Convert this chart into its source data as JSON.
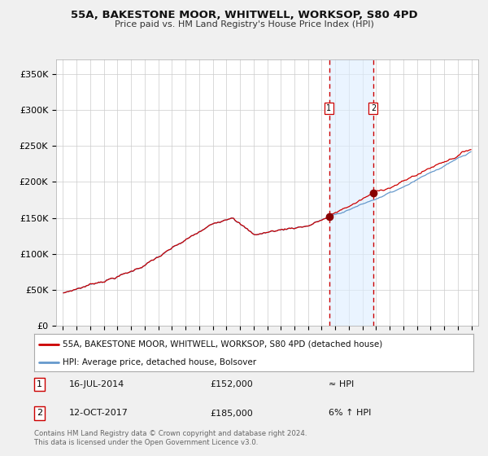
{
  "title": "55A, BAKESTONE MOOR, WHITWELL, WORKSOP, S80 4PD",
  "subtitle": "Price paid vs. HM Land Registry's House Price Index (HPI)",
  "legend_line1": "55A, BAKESTONE MOOR, WHITWELL, WORKSOP, S80 4PD (detached house)",
  "legend_line2": "HPI: Average price, detached house, Bolsover",
  "annotation1_date": "16-JUL-2014",
  "annotation1_price": "£152,000",
  "annotation1_hpi": "≈ HPI",
  "annotation1_label": "1",
  "annotation2_date": "12-OCT-2017",
  "annotation2_price": "£185,000",
  "annotation2_hpi": "6% ↑ HPI",
  "annotation2_label": "2",
  "footer": "Contains HM Land Registry data © Crown copyright and database right 2024.\nThis data is licensed under the Open Government Licence v3.0.",
  "red_line_color": "#cc0000",
  "blue_line_color": "#6699cc",
  "vline_color": "#cc0000",
  "shade_color": "#ddeeff",
  "point1_x_year": 2014.54,
  "point1_y": 152000,
  "point2_x_year": 2017.79,
  "point2_y": 185000,
  "ylim": [
    0,
    370000
  ],
  "yticks": [
    0,
    50000,
    100000,
    150000,
    200000,
    250000,
    300000,
    350000
  ],
  "xlim_start": 1994.5,
  "xlim_end": 2025.5,
  "background_color": "#f0f0f0",
  "plot_background": "#ffffff"
}
